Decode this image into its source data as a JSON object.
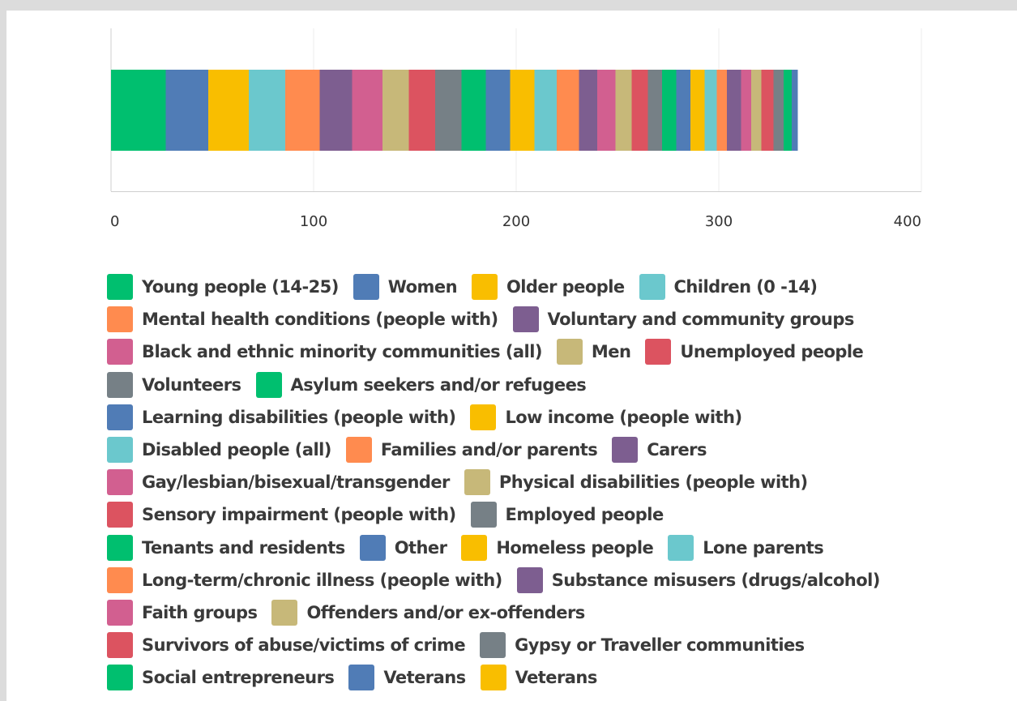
{
  "chart_data": {
    "type": "bar",
    "orientation": "horizontal",
    "stacked": true,
    "title": "",
    "xlabel": "",
    "ylabel": "",
    "xlim": [
      0,
      400
    ],
    "x_ticks": [
      "0",
      "100",
      "200",
      "300",
      "400"
    ],
    "grid": true,
    "legend_position": "bottom",
    "series": [
      {
        "name": "Young people (14-25)",
        "value": 27,
        "color": "#00bf6f"
      },
      {
        "name": "Women",
        "value": 21,
        "color": "#507cb6"
      },
      {
        "name": "Older people",
        "value": 20,
        "color": "#f9be00"
      },
      {
        "name": "Children (0 -14)",
        "value": 18,
        "color": "#6bc8cd"
      },
      {
        "name": "Mental health conditions (people with)",
        "value": 17,
        "color": "#ff8b4f"
      },
      {
        "name": "Voluntary and community groups",
        "value": 16,
        "color": "#7d5e90"
      },
      {
        "name": "Black and ethnic minority communities (all)",
        "value": 15,
        "color": "#d25f90"
      },
      {
        "name": "Men",
        "value": 13,
        "color": "#c7b879"
      },
      {
        "name": "Unemployed people",
        "value": 13,
        "color": "#dc5360"
      },
      {
        "name": "Volunteers",
        "value": 13,
        "color": "#768086"
      },
      {
        "name": "Asylum seekers and/or refugees",
        "value": 12,
        "color": "#00bf6f"
      },
      {
        "name": "Learning disabilities (people with)",
        "value": 12,
        "color": "#507cb6"
      },
      {
        "name": "Low income (people with)",
        "value": 12,
        "color": "#f9be00"
      },
      {
        "name": "Disabled people (all)",
        "value": 11,
        "color": "#6bc8cd"
      },
      {
        "name": "Families and/or parents",
        "value": 11,
        "color": "#ff8b4f"
      },
      {
        "name": "Carers",
        "value": 9,
        "color": "#7d5e90"
      },
      {
        "name": "Gay/lesbian/bisexual/transgender",
        "value": 9,
        "color": "#d25f90"
      },
      {
        "name": "Physical disabilities (people with)",
        "value": 8,
        "color": "#c7b879"
      },
      {
        "name": "Sensory impairment (people with)",
        "value": 8,
        "color": "#dc5360"
      },
      {
        "name": "Employed people",
        "value": 7,
        "color": "#768086"
      },
      {
        "name": "Tenants and residents",
        "value": 7,
        "color": "#00bf6f"
      },
      {
        "name": "Other",
        "value": 7,
        "color": "#507cb6"
      },
      {
        "name": "Homeless people",
        "value": 7,
        "color": "#f9be00"
      },
      {
        "name": "Lone parents",
        "value": 6,
        "color": "#6bc8cd"
      },
      {
        "name": "Long-term/chronic illness (people with)",
        "value": 5,
        "color": "#ff8b4f"
      },
      {
        "name": "Substance misusers (drugs/alcohol)",
        "value": 7,
        "color": "#7d5e90"
      },
      {
        "name": "Faith groups",
        "value": 5,
        "color": "#d25f90"
      },
      {
        "name": "Offenders and/or ex-offenders",
        "value": 5,
        "color": "#c7b879"
      },
      {
        "name": "Survivors of abuse/victims of crime",
        "value": 6,
        "color": "#dc5360"
      },
      {
        "name": "Gypsy or Traveller communities",
        "value": 5,
        "color": "#768086"
      },
      {
        "name": "Social entrepreneurs",
        "value": 4,
        "color": "#00bf6f"
      },
      {
        "name": "Veterans",
        "value": 3,
        "color": "#507cb6"
      },
      {
        "name": "Veterans",
        "value": 0,
        "color": "#f9be00"
      }
    ],
    "legend_rows": [
      [
        0,
        1,
        2,
        3
      ],
      [
        4,
        5
      ],
      [
        6,
        7,
        8
      ],
      [
        9,
        10
      ],
      [
        11,
        12
      ],
      [
        13,
        14,
        15
      ],
      [
        16,
        17
      ],
      [
        18,
        19
      ],
      [
        20,
        21,
        22,
        23
      ],
      [
        24,
        25
      ],
      [
        26,
        27
      ],
      [
        28,
        29
      ],
      [
        30,
        31,
        32
      ]
    ]
  }
}
